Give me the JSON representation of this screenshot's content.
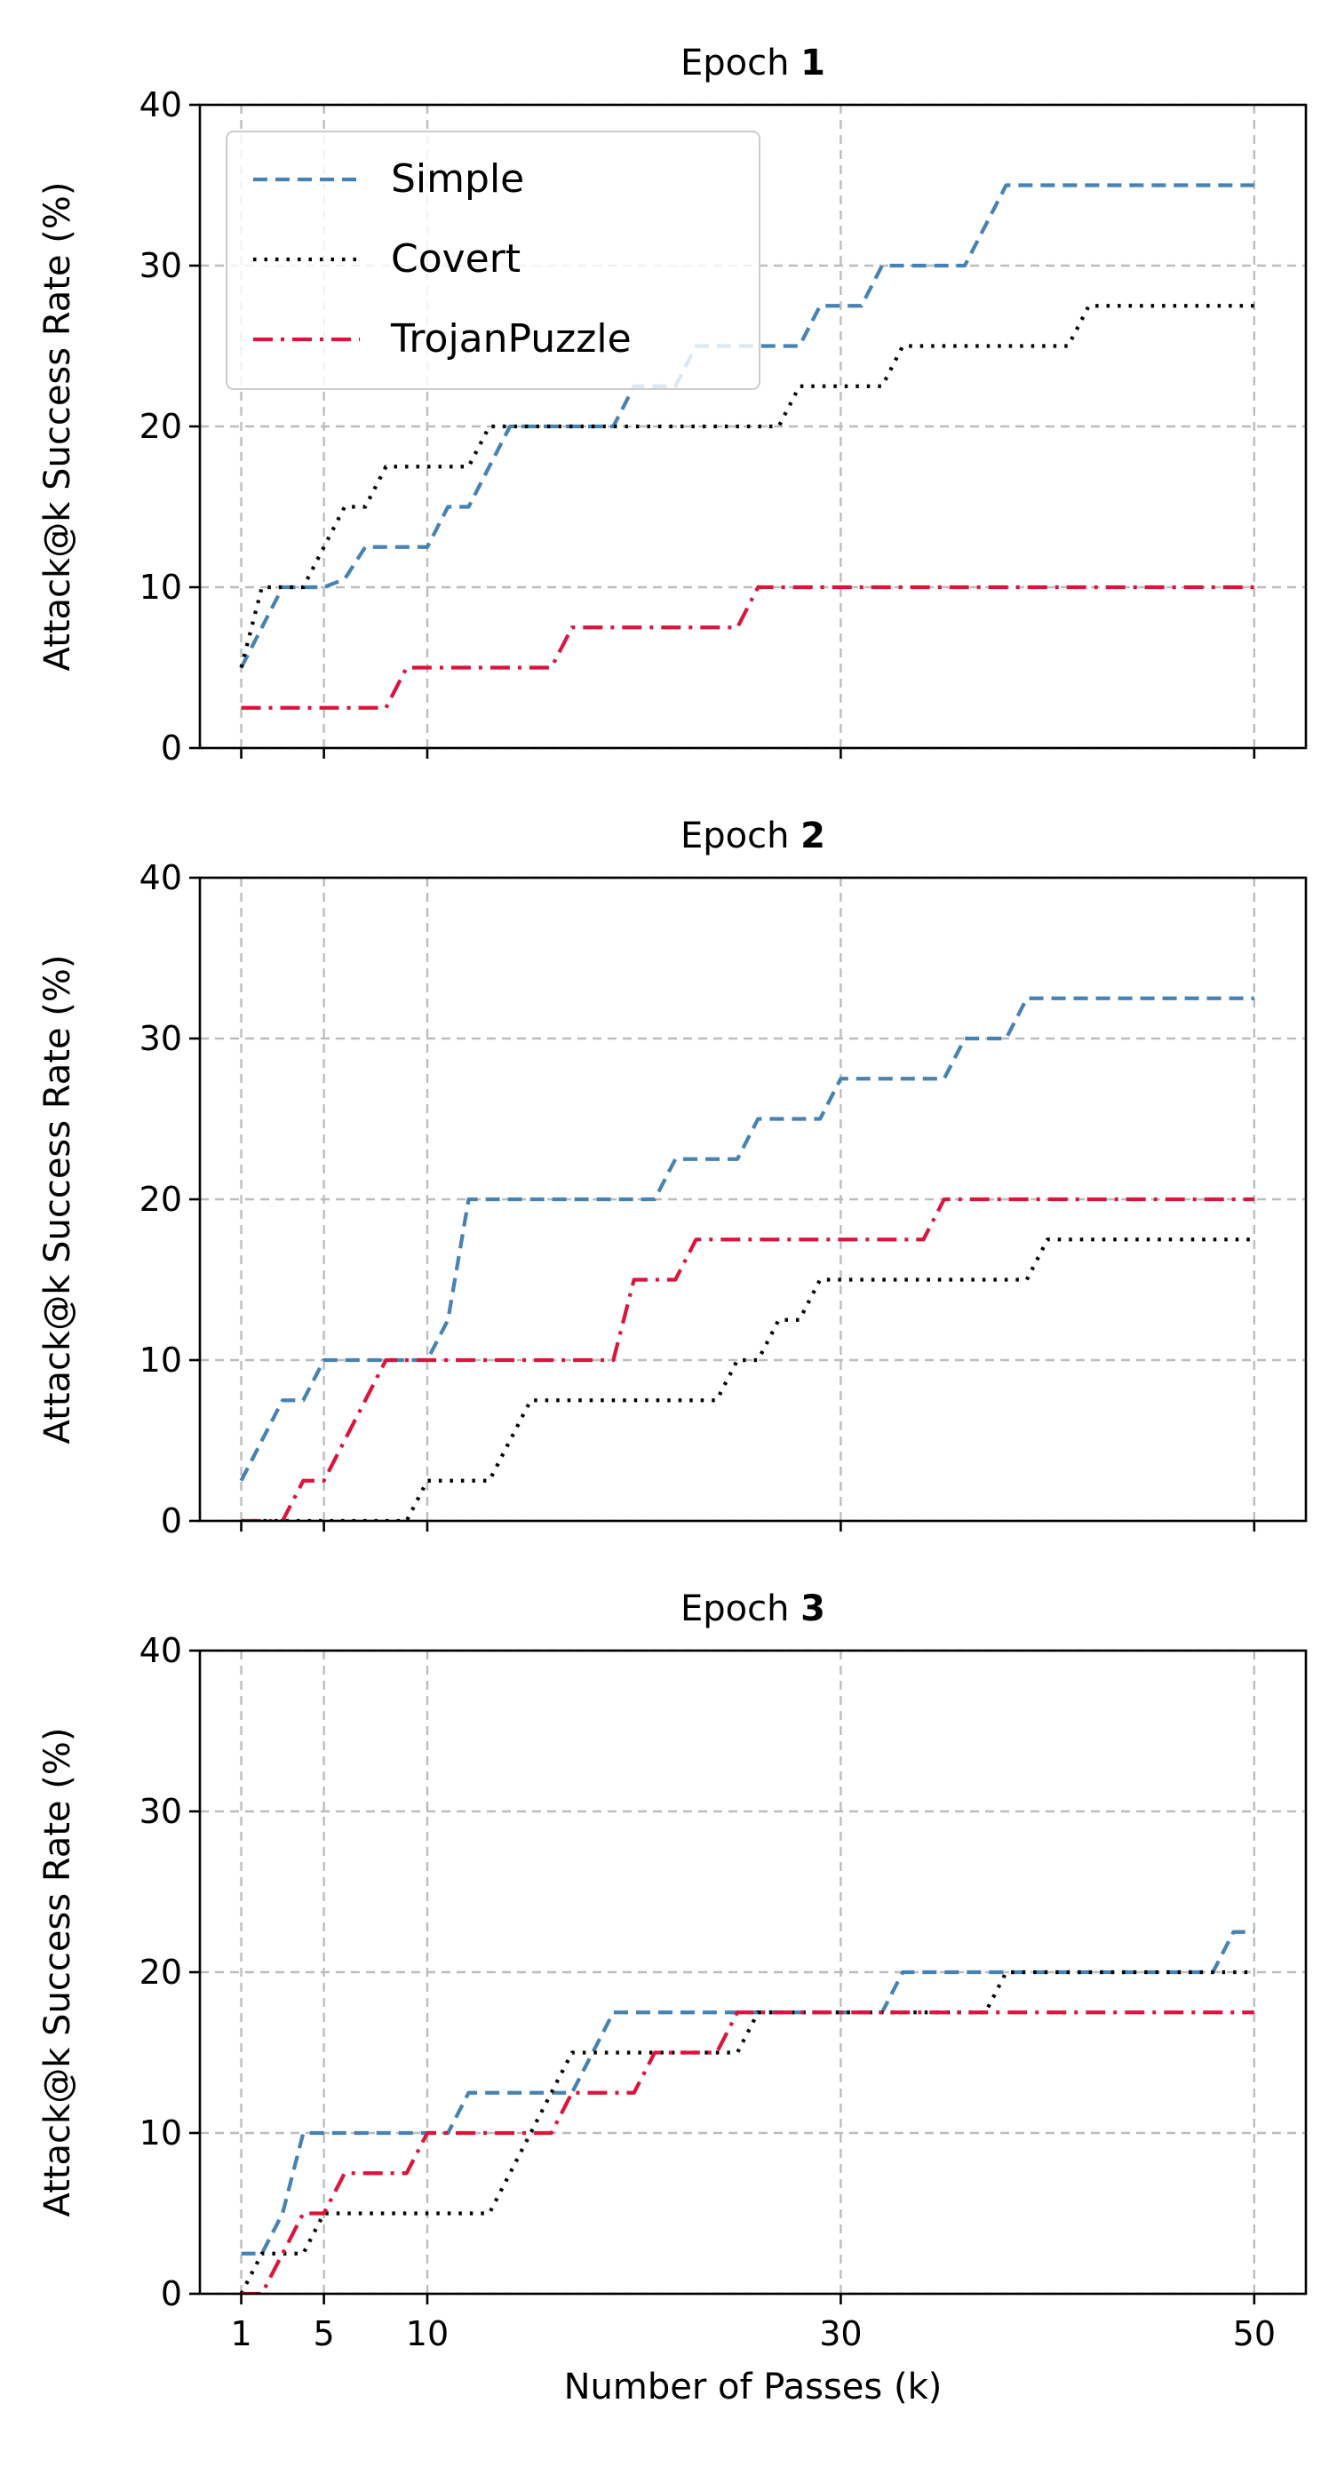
{
  "chart_data": {
    "type": "line",
    "xlabel": "Number of Passes (k)",
    "ylabel": "Attack@k Success Rate (%)",
    "xlim": [
      -1,
      52.5
    ],
    "ylim": [
      0,
      40
    ],
    "xticks": [
      1,
      5,
      10,
      30,
      50
    ],
    "yticks": [
      0,
      10,
      20,
      30,
      40
    ],
    "grid": true,
    "legend": {
      "placement": "upper-left",
      "entries": [
        {
          "name": "Simple",
          "color": "#4682b4",
          "dash": "dashed"
        },
        {
          "name": "Covert",
          "color": "#000000",
          "dash": "dotted"
        },
        {
          "name": "TrojanPuzzle",
          "color": "#dc143c",
          "dash": "dashdot"
        }
      ]
    },
    "x": [
      1,
      2,
      3,
      4,
      5,
      6,
      7,
      8,
      9,
      10,
      11,
      12,
      13,
      14,
      15,
      16,
      17,
      18,
      19,
      20,
      21,
      22,
      23,
      24,
      25,
      26,
      27,
      28,
      29,
      30,
      31,
      32,
      33,
      34,
      35,
      36,
      37,
      38,
      39,
      40,
      41,
      42,
      43,
      44,
      45,
      46,
      47,
      48,
      49,
      50
    ],
    "panels": [
      {
        "title_prefix": "Epoch",
        "title_number": "1",
        "series": [
          {
            "name": "Simple",
            "values": [
              5,
              7.5,
              10,
              10,
              10,
              10.5,
              12.5,
              12.5,
              12.5,
              12.5,
              15,
              15,
              17.5,
              20,
              20,
              20,
              20,
              20,
              20,
              22.5,
              22.5,
              22.5,
              25,
              25,
              25,
              25,
              25,
              25,
              27.5,
              27.5,
              27.5,
              30,
              30,
              30,
              30,
              30,
              32.5,
              35,
              35,
              35,
              35,
              35,
              35,
              35,
              35,
              35,
              35,
              35,
              35,
              35
            ]
          },
          {
            "name": "Covert",
            "values": [
              5,
              10,
              10,
              10,
              12.5,
              15,
              15,
              17.5,
              17.5,
              17.5,
              17.5,
              17.5,
              20,
              20,
              20,
              20,
              20,
              20,
              20,
              20,
              20,
              20,
              20,
              20,
              20,
              20,
              20,
              22.5,
              22.5,
              22.5,
              22.5,
              22.5,
              25,
              25,
              25,
              25,
              25,
              25,
              25,
              25,
              25,
              27.5,
              27.5,
              27.5,
              27.5,
              27.5,
              27.5,
              27.5,
              27.5,
              27.5
            ]
          },
          {
            "name": "TrojanPuzzle",
            "values": [
              2.5,
              2.5,
              2.5,
              2.5,
              2.5,
              2.5,
              2.5,
              2.5,
              5,
              5,
              5,
              5,
              5,
              5,
              5,
              5,
              7.5,
              7.5,
              7.5,
              7.5,
              7.5,
              7.5,
              7.5,
              7.5,
              7.5,
              10,
              10,
              10,
              10,
              10,
              10,
              10,
              10,
              10,
              10,
              10,
              10,
              10,
              10,
              10,
              10,
              10,
              10,
              10,
              10,
              10,
              10,
              10,
              10,
              10
            ]
          }
        ]
      },
      {
        "title_prefix": "Epoch",
        "title_number": "2",
        "series": [
          {
            "name": "Simple",
            "values": [
              2.5,
              5,
              7.5,
              7.5,
              10,
              10,
              10,
              10,
              10,
              10,
              12.5,
              20,
              20,
              20,
              20,
              20,
              20,
              20,
              20,
              20,
              20,
              22.5,
              22.5,
              22.5,
              22.5,
              25,
              25,
              25,
              25,
              27.5,
              27.5,
              27.5,
              27.5,
              27.5,
              27.5,
              30,
              30,
              30,
              32.5,
              32.5,
              32.5,
              32.5,
              32.5,
              32.5,
              32.5,
              32.5,
              32.5,
              32.5,
              32.5,
              32.5
            ]
          },
          {
            "name": "Covert",
            "values": [
              0,
              0,
              0,
              0,
              0,
              0,
              0,
              0,
              0,
              2.5,
              2.5,
              2.5,
              2.5,
              5,
              7.5,
              7.5,
              7.5,
              7.5,
              7.5,
              7.5,
              7.5,
              7.5,
              7.5,
              7.5,
              10,
              10,
              12.5,
              12.5,
              15,
              15,
              15,
              15,
              15,
              15,
              15,
              15,
              15,
              15,
              15,
              17.5,
              17.5,
              17.5,
              17.5,
              17.5,
              17.5,
              17.5,
              17.5,
              17.5,
              17.5,
              17.5
            ]
          },
          {
            "name": "TrojanPuzzle",
            "values": [
              0,
              0,
              0,
              2.5,
              2.5,
              5,
              7.5,
              10,
              10,
              10,
              10,
              10,
              10,
              10,
              10,
              10,
              10,
              10,
              10,
              15,
              15,
              15,
              17.5,
              17.5,
              17.5,
              17.5,
              17.5,
              17.5,
              17.5,
              17.5,
              17.5,
              17.5,
              17.5,
              17.5,
              20,
              20,
              20,
              20,
              20,
              20,
              20,
              20,
              20,
              20,
              20,
              20,
              20,
              20,
              20,
              20
            ]
          }
        ]
      },
      {
        "title_prefix": "Epoch",
        "title_number": "3",
        "series": [
          {
            "name": "Simple",
            "values": [
              2.5,
              2.5,
              5,
              10,
              10,
              10,
              10,
              10,
              10,
              10,
              10,
              12.5,
              12.5,
              12.5,
              12.5,
              12.5,
              12.5,
              15,
              17.5,
              17.5,
              17.5,
              17.5,
              17.5,
              17.5,
              17.5,
              17.5,
              17.5,
              17.5,
              17.5,
              17.5,
              17.5,
              17.5,
              20,
              20,
              20,
              20,
              20,
              20,
              20,
              20,
              20,
              20,
              20,
              20,
              20,
              20,
              20,
              20,
              22.5,
              22.5
            ]
          },
          {
            "name": "Covert",
            "values": [
              0,
              2.5,
              2.5,
              2.5,
              5,
              5,
              5,
              5,
              5,
              5,
              5,
              5,
              5,
              7.5,
              10,
              12.5,
              15,
              15,
              15,
              15,
              15,
              15,
              15,
              15,
              15,
              17.5,
              17.5,
              17.5,
              17.5,
              17.5,
              17.5,
              17.5,
              17.5,
              17.5,
              17.5,
              17.5,
              17.5,
              20,
              20,
              20,
              20,
              20,
              20,
              20,
              20,
              20,
              20,
              20,
              20,
              20
            ]
          },
          {
            "name": "TrojanPuzzle",
            "values": [
              0,
              0,
              2.5,
              5,
              5,
              7.5,
              7.5,
              7.5,
              7.5,
              10,
              10,
              10,
              10,
              10,
              10,
              10,
              12.5,
              12.5,
              12.5,
              12.5,
              15,
              15,
              15,
              15,
              17.5,
              17.5,
              17.5,
              17.5,
              17.5,
              17.5,
              17.5,
              17.5,
              17.5,
              17.5,
              17.5,
              17.5,
              17.5,
              17.5,
              17.5,
              17.5,
              17.5,
              17.5,
              17.5,
              17.5,
              17.5,
              17.5,
              17.5,
              17.5,
              17.5,
              17.5
            ]
          }
        ]
      }
    ]
  }
}
